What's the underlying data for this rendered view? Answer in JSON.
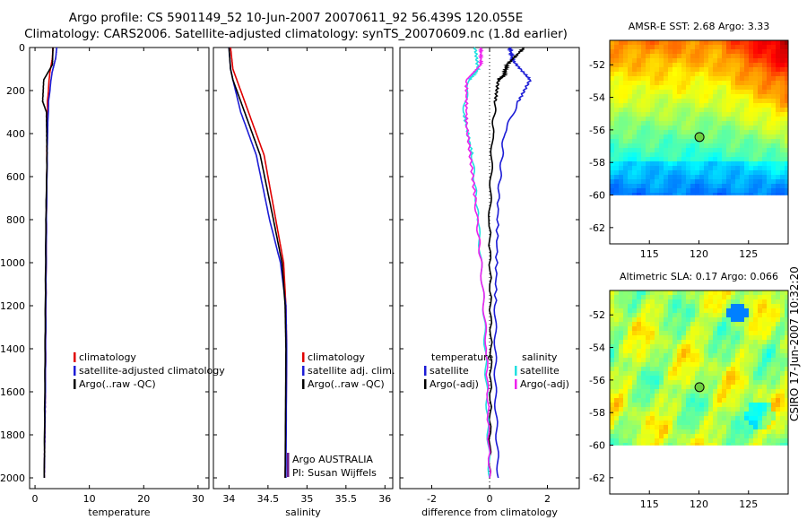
{
  "header": {
    "line1": "Argo profile: CS 5901149_52 10-Jun-2007 20070611_92 56.439S 120.055E",
    "line2": "Climatology: CARS2006. Satellite-adjusted climatology: synTS_20070609.nc (1.8d earlier)"
  },
  "stamp": "CSIRO 17-Jun-2007 10:32:20",
  "colors": {
    "climatology": "#e00000",
    "satellite": "#1c1cd6",
    "argo": "#000000",
    "sat_salinity": "#22e0e0",
    "argo_adj_salinity": "#ee22ee"
  },
  "chart_data": [
    {
      "type": "line",
      "panel": "temperature",
      "xlabel": "temperature",
      "xlim": [
        -1,
        32
      ],
      "xticks": [
        "0",
        "10",
        "20",
        "30"
      ],
      "ylim": [
        0,
        2050
      ],
      "yreversed": true,
      "yticks": [
        "0",
        "200",
        "400",
        "600",
        "800",
        "1000",
        "1200",
        "1400",
        "1600",
        "1800",
        "2000"
      ],
      "legend": [
        "climatology",
        "satellite-adjusted climatology",
        "Argo(..raw -QC)"
      ],
      "series": [
        {
          "name": "climatology",
          "color": "#e00000",
          "x": [
            3.3,
            3.2,
            2.7,
            2.3,
            2.2,
            2.1,
            2.0,
            1.9,
            1.8,
            1.7
          ],
          "y": [
            0,
            50,
            120,
            250,
            400,
            800,
            1200,
            1600,
            1800,
            2000
          ]
        },
        {
          "name": "satellite-adjusted climatology",
          "color": "#1c1cd6",
          "x": [
            4.0,
            3.8,
            3.1,
            2.5,
            2.3,
            2.1,
            2.0,
            1.9,
            1.8,
            1.7
          ],
          "y": [
            0,
            50,
            120,
            250,
            400,
            800,
            1200,
            1600,
            1800,
            2000
          ]
        },
        {
          "name": "Argo(..raw -QC)",
          "color": "#000000",
          "x": [
            3.3,
            3.2,
            1.6,
            1.4,
            2.1,
            2.2,
            2.0,
            1.9,
            1.8,
            1.7
          ],
          "y": [
            0,
            80,
            150,
            250,
            300,
            500,
            800,
            1200,
            1600,
            2000
          ]
        }
      ]
    },
    {
      "type": "line",
      "panel": "salinity",
      "xlabel": "salinity",
      "xlim": [
        33.8,
        36.1
      ],
      "xticks": [
        "34",
        "34.5",
        "35",
        "35.5",
        "36"
      ],
      "ylim": [
        0,
        2050
      ],
      "yreversed": true,
      "legend": [
        "climatology",
        "satellite adj. clim.",
        "Argo(..raw -QC)"
      ],
      "annotation": [
        "Argo AUSTRALIA",
        "PI: Susan Wijffels"
      ],
      "series": [
        {
          "name": "climatology",
          "color": "#e00000",
          "x": [
            34.02,
            34.05,
            34.1,
            34.25,
            34.45,
            34.6,
            34.7,
            34.73,
            34.74,
            34.73,
            34.72
          ],
          "y": [
            0,
            100,
            150,
            300,
            500,
            800,
            1000,
            1200,
            1400,
            1800,
            2000
          ]
        },
        {
          "name": "satellite adj. clim.",
          "color": "#1c1cd6",
          "x": [
            34.0,
            34.02,
            34.05,
            34.15,
            34.35,
            34.52,
            34.66,
            34.73,
            34.74,
            34.73
          ],
          "y": [
            0,
            100,
            150,
            300,
            500,
            800,
            1000,
            1200,
            1400,
            2000
          ]
        },
        {
          "name": "Argo(..raw -QC)",
          "color": "#000000",
          "x": [
            34.0,
            34.02,
            34.05,
            34.2,
            34.4,
            34.57,
            34.68,
            34.72,
            34.73,
            34.72
          ],
          "y": [
            0,
            100,
            150,
            300,
            500,
            800,
            1000,
            1200,
            1400,
            2000
          ]
        }
      ]
    },
    {
      "type": "line",
      "panel": "difference",
      "xlabel": "difference from climatology",
      "xlim": [
        -3.1,
        3.1
      ],
      "xticks": [
        "-2",
        "0",
        "2"
      ],
      "ylim": [
        0,
        2050
      ],
      "yreversed": true,
      "legend_left": {
        "title": "temperature",
        "items": [
          "satellite",
          "Argo(-adj)"
        ]
      },
      "legend_right": {
        "title": "salinity",
        "items": [
          "satellite",
          "Argo(-adj)"
        ]
      },
      "series": [
        {
          "name": "temperature satellite",
          "color": "#1c1cd6",
          "x": [
            0.7,
            0.8,
            1.4,
            1.0,
            0.5,
            0.3,
            0.2,
            0.2,
            0.3
          ],
          "y": [
            0,
            60,
            150,
            250,
            400,
            700,
            1200,
            1600,
            2000
          ]
        },
        {
          "name": "temperature Argo(-adj)",
          "color": "#000000",
          "x": [
            1.2,
            0.6,
            0.5,
            0.3,
            0.2,
            0.1,
            0.0,
            0.05,
            0.0
          ],
          "y": [
            0,
            80,
            130,
            150,
            250,
            400,
            800,
            1400,
            2000
          ]
        },
        {
          "name": "salinity satellite",
          "color": "#22e0e0",
          "x": [
            -0.5,
            -0.4,
            -0.7,
            -0.9,
            -0.6,
            -0.4,
            -0.2,
            -0.1,
            0.0
          ],
          "y": [
            0,
            100,
            150,
            300,
            500,
            800,
            1200,
            1600,
            2000
          ]
        },
        {
          "name": "salinity Argo(-adj)",
          "color": "#ee22ee",
          "x": [
            -0.3,
            -0.3,
            -0.8,
            -0.8,
            -0.5,
            -0.3,
            -0.1,
            0.0
          ],
          "y": [
            0,
            80,
            150,
            350,
            700,
            1000,
            1400,
            2000
          ]
        }
      ]
    },
    {
      "type": "heatmap",
      "panel": "sst_map",
      "title": "AMSR-E SST: 2.68 Argo: 3.33",
      "xlim": [
        111,
        129
      ],
      "ylim": [
        -63,
        -50.5
      ],
      "xticks": [
        "115",
        "120",
        "125"
      ],
      "yticks": [
        "-52",
        "-54",
        "-56",
        "-58",
        "-60",
        "-62"
      ],
      "marker": {
        "lon": 120.055,
        "lat": -56.439
      },
      "data_lat_min": -60
    },
    {
      "type": "heatmap",
      "panel": "sla_map",
      "title": "Altimetric SLA: 0.17 Argo: 0.066",
      "xlim": [
        111,
        129
      ],
      "ylim": [
        -63,
        -50.5
      ],
      "xticks": [
        "115",
        "120",
        "125"
      ],
      "yticks": [
        "-52",
        "-54",
        "-56",
        "-58",
        "-60",
        "-62"
      ],
      "marker": {
        "lon": 120.055,
        "lat": -56.439
      },
      "data_lat_min": -60
    }
  ]
}
